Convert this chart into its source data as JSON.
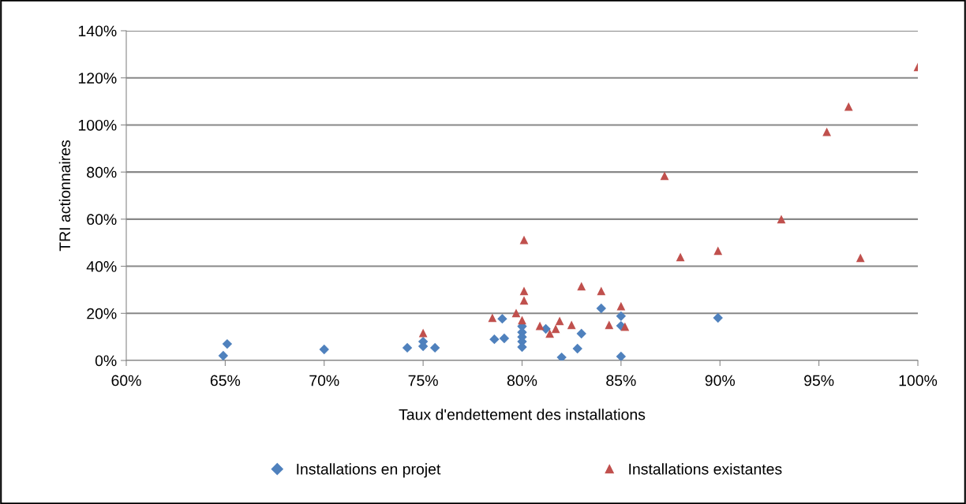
{
  "chart_data": {
    "type": "scatter",
    "xlabel": "Taux d'endettement des installations",
    "ylabel": "TRI actionnaires",
    "xlim": [
      60,
      100
    ],
    "xticks": [
      {
        "value": 60,
        "label": "60%"
      },
      {
        "value": 65,
        "label": "65%"
      },
      {
        "value": 70,
        "label": "70%"
      },
      {
        "value": 75,
        "label": "75%"
      },
      {
        "value": 80,
        "label": "80%"
      },
      {
        "value": 85,
        "label": "85%"
      },
      {
        "value": 90,
        "label": "90%"
      },
      {
        "value": 95,
        "label": "95%"
      },
      {
        "value": 100,
        "label": "100%"
      }
    ],
    "ylim": [
      0,
      140
    ],
    "yticks": [
      {
        "value": 0,
        "label": "0%"
      },
      {
        "value": 20,
        "label": "20%"
      },
      {
        "value": 40,
        "label": "40%"
      },
      {
        "value": 60,
        "label": "60%"
      },
      {
        "value": 80,
        "label": "80%"
      },
      {
        "value": 100,
        "label": "100%"
      },
      {
        "value": 120,
        "label": "120%"
      },
      {
        "value": 140,
        "label": "140%"
      }
    ],
    "grid": "y",
    "legend": "bottom",
    "series": [
      {
        "name": "Installations en projet",
        "color": "#4f81bd",
        "marker": "diamond",
        "x": [
          64.9,
          65.1,
          70.0,
          74.2,
          75.0,
          75.0,
          75.6,
          78.6,
          79.1,
          79.0,
          80.0,
          80.0,
          80.0,
          80.0,
          80.0,
          81.2,
          83.0,
          82.8,
          82.0,
          84.0,
          85.0,
          85.0,
          85.0,
          89.9
        ],
        "values": [
          2.0,
          7.0,
          4.7,
          5.4,
          8,
          6,
          5.4,
          9.0,
          9.4,
          17.7,
          14.5,
          12,
          10,
          8,
          5.7,
          13.4,
          11.4,
          5.0,
          1.3,
          22.1,
          18.8,
          14.7,
          1.7,
          18.1
        ]
      },
      {
        "name": "Installations existantes",
        "color": "#c0504d",
        "marker": "triangle",
        "x": [
          75.0,
          78.5,
          79.7,
          80.0,
          80.1,
          80.1,
          80.1,
          80.9,
          81.4,
          81.7,
          81.9,
          82.5,
          83.0,
          84.0,
          84.4,
          85.0,
          85.2,
          87.2,
          88.0,
          89.9,
          93.1,
          95.4,
          96.5,
          97.1,
          100.0
        ],
        "values": [
          11.7,
          18.1,
          20.1,
          17.1,
          51.2,
          29.5,
          25.5,
          14.7,
          11.4,
          13.4,
          16.8,
          15.1,
          31.5,
          29.5,
          15.1,
          23.1,
          14.4,
          78.4,
          43.9,
          46.6,
          60.0,
          97.1,
          107.8,
          43.6,
          124.6
        ]
      }
    ]
  }
}
